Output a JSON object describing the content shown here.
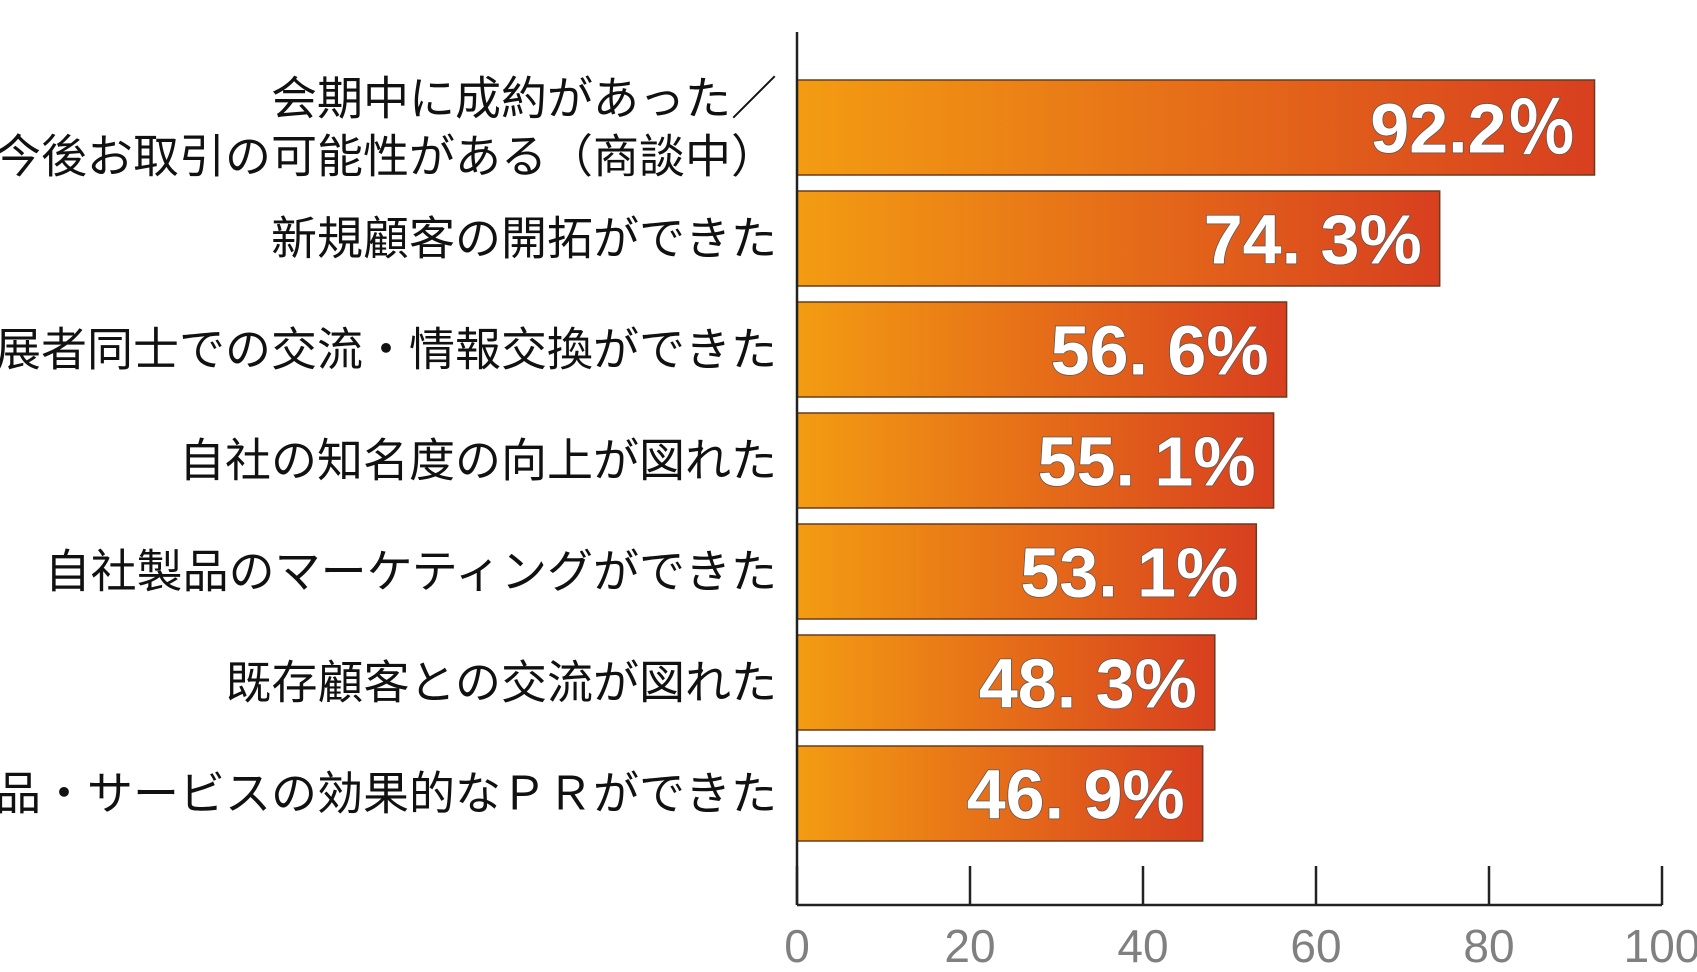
{
  "chart_data": {
    "type": "bar",
    "orientation": "horizontal",
    "categories": [
      [
        "会期中に成約があった／",
        "今後お取引の可能性がある（商談中）"
      ],
      [
        "新規顧客の開拓ができた"
      ],
      [
        "出展者同士での交流・情報交換ができた"
      ],
      [
        "自社の知名度の向上が図れた"
      ],
      [
        "自社製品のマーケティングができた"
      ],
      [
        "既存顧客との交流が図れた"
      ],
      [
        "新商品・サービスの効果的なＰＲができた"
      ]
    ],
    "values": [
      92.2,
      74.3,
      56.6,
      55.1,
      53.1,
      48.3,
      46.9
    ],
    "data_labels": [
      "92.2％",
      "74. 3%",
      "56. 6%",
      "55. 1%",
      "53. 1%",
      "48. 3%",
      "46. 9%"
    ],
    "xlim": [
      0,
      100
    ],
    "x_ticks": [
      0,
      20,
      40,
      60,
      80,
      100
    ],
    "x_tick_labels": [
      "0",
      "20",
      "40",
      "60",
      "80",
      "100"
    ],
    "grid": false,
    "legend": "none",
    "title": "",
    "xlabel": "",
    "ylabel": "",
    "colors": {
      "bar_gradient_start": "#f39c12",
      "bar_gradient_end": "#d83f1f",
      "bar_border": "#6b3a1f",
      "axis": "#222222",
      "tick_label": "#808080",
      "category_label": "#111111",
      "data_label": "#ffffff"
    }
  }
}
